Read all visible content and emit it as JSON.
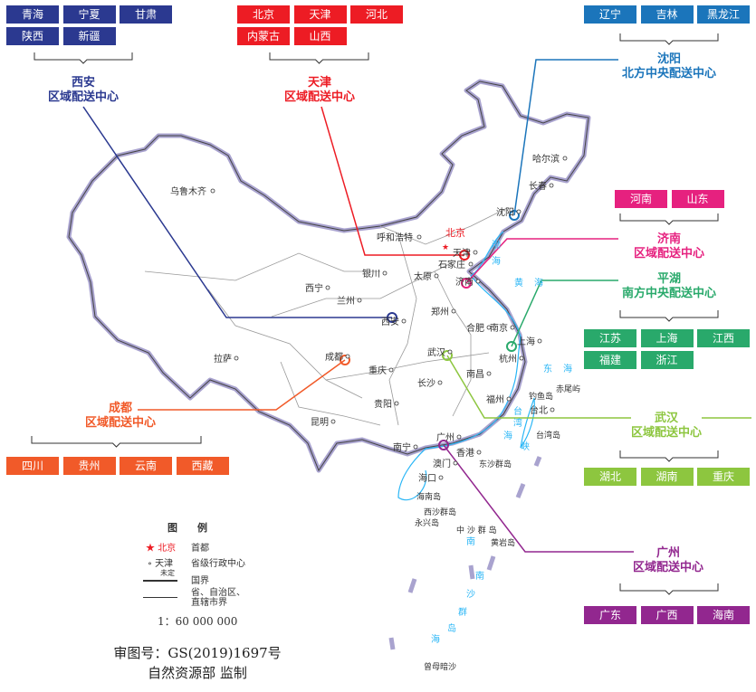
{
  "colors": {
    "xian": "#2b3990",
    "tianjin": "#ed1c24",
    "shenyang": "#1b75bb",
    "jinan": "#e6217f",
    "pinghu": "#29a96b",
    "chengdu": "#f15a29",
    "wuhan": "#8dc63f",
    "guangzhou": "#92278f",
    "sea": "#29b6f6",
    "border": "#a9a3cf"
  },
  "centers": {
    "xian": {
      "name": "西安",
      "sub": "区域配送中心",
      "provinces": [
        "青海",
        "宁夏",
        "甘肃",
        "陕西",
        "新疆"
      ]
    },
    "tianjin": {
      "name": "天津",
      "sub": "区域配送中心",
      "provinces": [
        "北京",
        "天津",
        "河北",
        "内蒙古",
        "山西"
      ]
    },
    "shenyang": {
      "name": "沈阳",
      "sub": "北方中央配送中心",
      "provinces": [
        "辽宁",
        "吉林",
        "黑龙江"
      ]
    },
    "jinan": {
      "name": "济南",
      "sub": "区域配送中心",
      "provinces": [
        "河南",
        "山东"
      ]
    },
    "pinghu": {
      "name": "平湖",
      "sub": "南方中央配送中心",
      "provinces": [
        "江苏",
        "上海",
        "江西",
        "福建",
        "浙江"
      ]
    },
    "chengdu": {
      "name": "成都",
      "sub": "区域配送中心",
      "provinces": [
        "四川",
        "贵州",
        "云南",
        "西藏"
      ]
    },
    "wuhan": {
      "name": "武汉",
      "sub": "区域配送中心",
      "provinces": [
        "湖北",
        "湖南",
        "重庆"
      ]
    },
    "guangzhou": {
      "name": "广州",
      "sub": "区域配送中心",
      "provinces": [
        "广东",
        "广西",
        "海南"
      ]
    }
  },
  "map": {
    "capital": "北京",
    "cities": [
      "乌鲁木齐",
      "哈尔滨",
      "长春",
      "沈阳",
      "呼和浩特",
      "天津",
      "石家庄",
      "银川",
      "太原",
      "济南",
      "西宁",
      "兰州",
      "郑州",
      "西安",
      "合肥",
      "南京",
      "上海",
      "杭州",
      "武汉",
      "成都",
      "拉萨",
      "重庆",
      "南昌",
      "长沙",
      "福州",
      "台北",
      "贵阳",
      "昆明",
      "南宁",
      "广州",
      "香港",
      "澳门",
      "海口"
    ],
    "places": [
      "钓鱼岛",
      "赤尾屿",
      "台湾岛",
      "东沙群岛",
      "海南岛",
      "西沙群岛",
      "永兴岛",
      "中 沙 群 岛",
      "黄岩岛",
      "曾母暗沙"
    ],
    "seas": [
      "渤",
      "海",
      "黄",
      "海",
      "东",
      "海",
      "台",
      "湾",
      "海",
      "峡",
      "南",
      "海",
      "南",
      "沙",
      "群",
      "岛"
    ]
  },
  "legend": {
    "title": "图　　例",
    "capital_label": "北京",
    "capital_desc": "首都",
    "prov_label": "天津",
    "prov_desc": "省级行政中心",
    "undetermined": "未定",
    "border_desc": "国界",
    "prov_border_desc1": "省、自治区、",
    "prov_border_desc2": "直辖市界",
    "scale": "1：60  000  000"
  },
  "footer": {
    "approval": "审图号：GS(2019)1697号",
    "issuer": "自然资源部  监制"
  }
}
